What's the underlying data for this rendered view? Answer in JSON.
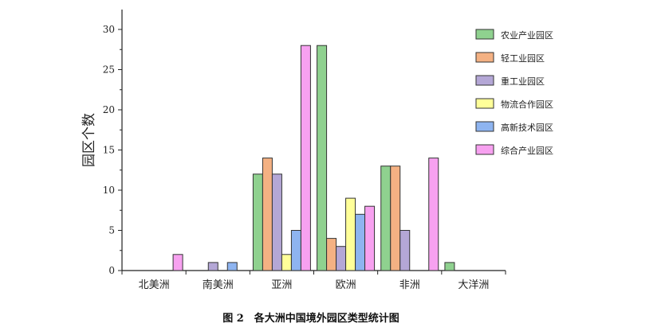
{
  "chart_data": {
    "type": "bar",
    "categories": [
      "北美洲",
      "南美洲",
      "亚洲",
      "欧洲",
      "非洲",
      "大洋洲"
    ],
    "series": [
      {
        "name": "农业产业园区",
        "color": "#8fd18f",
        "values": [
          0,
          0,
          12,
          28,
          13,
          1
        ]
      },
      {
        "name": "轻工业园区",
        "color": "#f4b183",
        "values": [
          0,
          0,
          14,
          4,
          13,
          0
        ]
      },
      {
        "name": "重工业园区",
        "color": "#b4a7d6",
        "values": [
          0,
          1,
          12,
          3,
          5,
          0
        ]
      },
      {
        "name": "物流合作园区",
        "color": "#ffff99",
        "values": [
          0,
          0,
          2,
          9,
          0,
          0
        ]
      },
      {
        "name": "高新技术园区",
        "color": "#8eb4f0",
        "values": [
          0,
          1,
          5,
          7,
          0,
          0
        ]
      },
      {
        "name": "综合产业园区",
        "color": "#f7a1f0",
        "values": [
          2,
          0,
          28,
          8,
          14,
          0
        ]
      }
    ],
    "ylabel": "园区个数",
    "ylim": [
      0,
      32
    ],
    "yticks": [
      0,
      5,
      10,
      15,
      20,
      25,
      30
    ],
    "legend_position": "top-right",
    "grid": false
  },
  "caption": "图 2　各大洲中国境外园区类型统计图"
}
